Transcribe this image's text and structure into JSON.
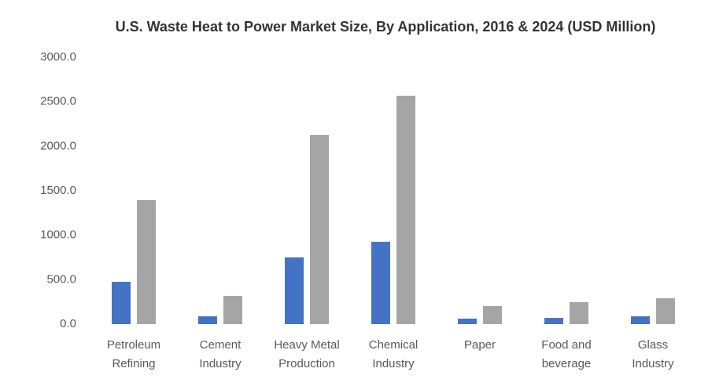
{
  "chart_data": {
    "type": "bar",
    "title": "U.S. Waste Heat to Power Market Size, By Application, 2016 & 2024 (USD Million)",
    "categories": [
      "Petroleum\nRefining",
      "Cement\nIndustry",
      "Heavy Metal\nProduction",
      "Chemical\nIndustry",
      "Paper",
      "Food and\nbeverage",
      "Glass\nIndustry"
    ],
    "series": [
      {
        "color": "#4472c4",
        "values": [
          476,
          88,
          750,
          926,
          62,
          70,
          88
        ]
      },
      {
        "color": "#a5a5a5",
        "values": [
          1394,
          318,
          2127,
          2568,
          203,
          247,
          291
        ]
      }
    ],
    "ylim": [
      0,
      3000
    ],
    "yticks": [
      {
        "value": 0,
        "label": "0.0"
      },
      {
        "value": 500,
        "label": "500.0"
      },
      {
        "value": 1000,
        "label": "1000.0"
      },
      {
        "value": 1500,
        "label": "1500.0"
      },
      {
        "value": 2000,
        "label": "2000.0"
      },
      {
        "value": 2500,
        "label": "2500.0"
      },
      {
        "value": 3000,
        "label": "3000.0"
      }
    ],
    "grid": false
  }
}
